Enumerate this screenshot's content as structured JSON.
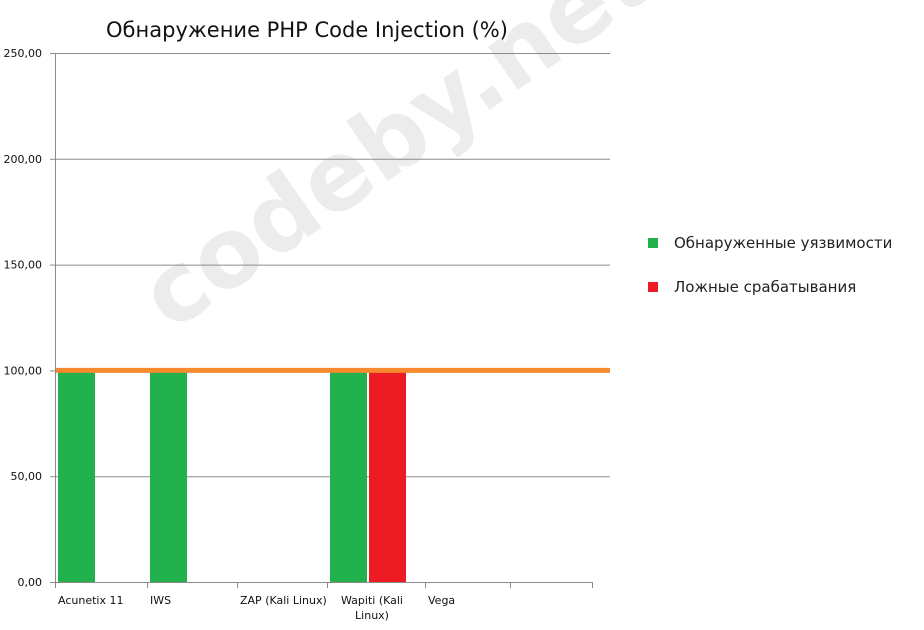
{
  "watermark": "codeby.net",
  "chart_data": {
    "type": "bar",
    "title": "Обнаружение PHP Code Injection (%)",
    "xlabel": "",
    "ylabel": "",
    "ylim": [
      0,
      250
    ],
    "y_ticks": [
      "0,00",
      "50,00",
      "100,00",
      "150,00",
      "200,00",
      "250,00"
    ],
    "y_tick_values": [
      0,
      50,
      100,
      150,
      200,
      250
    ],
    "categories": [
      [
        "Acunetix 11"
      ],
      [
        "IWS"
      ],
      [
        "ZAP (Kali Linux)"
      ],
      [
        "Wapiti (Kali",
        "Linux)"
      ],
      [
        "Vega"
      ],
      [
        ""
      ]
    ],
    "series": [
      {
        "name": "Обнаруженные уязвимости",
        "color": "#22b14c",
        "values": [
          100,
          100,
          0,
          100,
          0,
          0
        ]
      },
      {
        "name": "Ложные срабатывания",
        "color": "#ed1c24",
        "values": [
          0,
          0,
          0,
          100,
          0,
          0
        ]
      }
    ],
    "reference_line": {
      "value": 100,
      "color": "#f7892f"
    },
    "grid": true,
    "legend_position": "right"
  }
}
